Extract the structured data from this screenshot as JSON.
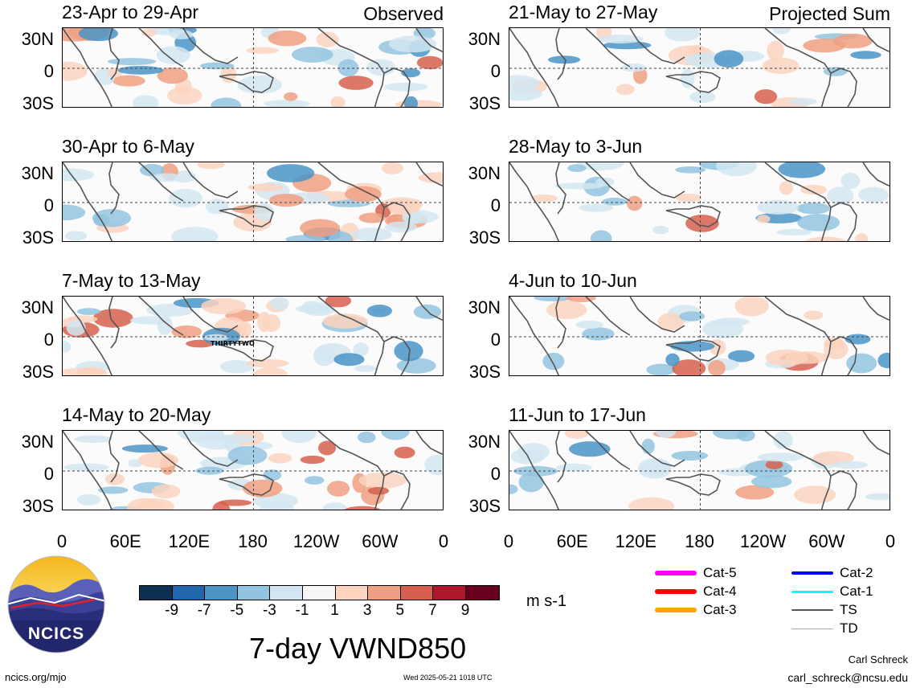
{
  "panels": [
    {
      "title": "23-Apr to 29-Apr",
      "label": "Observed",
      "tc": ""
    },
    {
      "title": "21-May to 27-May",
      "label": "Projected Sum",
      "tc": ""
    },
    {
      "title": "30-Apr to 6-May",
      "label": "",
      "tc": ""
    },
    {
      "title": "28-May to 3-Jun",
      "label": "",
      "tc": ""
    },
    {
      "title": "7-May to 13-May",
      "label": "",
      "tc": "THIRTYTWO"
    },
    {
      "title": "4-Jun to 10-Jun",
      "label": "",
      "tc": ""
    },
    {
      "title": "14-May to 20-May",
      "label": "",
      "tc": ""
    },
    {
      "title": "11-Jun to 17-Jun",
      "label": "",
      "tc": ""
    }
  ],
  "lat_labels": [
    "30N",
    "0",
    "30S"
  ],
  "lon_labels": [
    "0",
    "60E",
    "120E",
    "180",
    "120W",
    "60W",
    "0"
  ],
  "colorbar": {
    "ticks": [
      "-9",
      "-7",
      "-5",
      "-3",
      "-1",
      "1",
      "3",
      "5",
      "7",
      "9"
    ],
    "colors": [
      "#0d2f52",
      "#2167ad",
      "#4a94c6",
      "#93c4df",
      "#d2e6f1",
      "#f7f7f7",
      "#fbd3bf",
      "#f0a082",
      "#d6604d",
      "#b0172b",
      "#67001f"
    ],
    "units": "m s-1"
  },
  "title": "7-day VWND850",
  "legend": [
    {
      "label": "Cat-5",
      "color": "#ff00ff",
      "width": 6
    },
    {
      "label": "Cat-4",
      "color": "#ff0000",
      "width": 6
    },
    {
      "label": "Cat-3",
      "color": "#ffa500",
      "width": 6
    },
    {
      "label": "Cat-2",
      "color": "#0000ff",
      "width": 4
    },
    {
      "label": "Cat-1",
      "color": "#00ffff",
      "width": 3
    },
    {
      "label": "TS",
      "color": "#555555",
      "width": 2
    },
    {
      "label": "TD",
      "color": "#aaaaaa",
      "width": 1
    }
  ],
  "logo": {
    "text": "NCICS"
  },
  "footer": {
    "url": "ncics.org/mjo",
    "timestamp": "Wed 2025-05-21 1018 UTC",
    "author": "Carl Schreck",
    "email": "carl_schreck@ncsu.edu"
  }
}
